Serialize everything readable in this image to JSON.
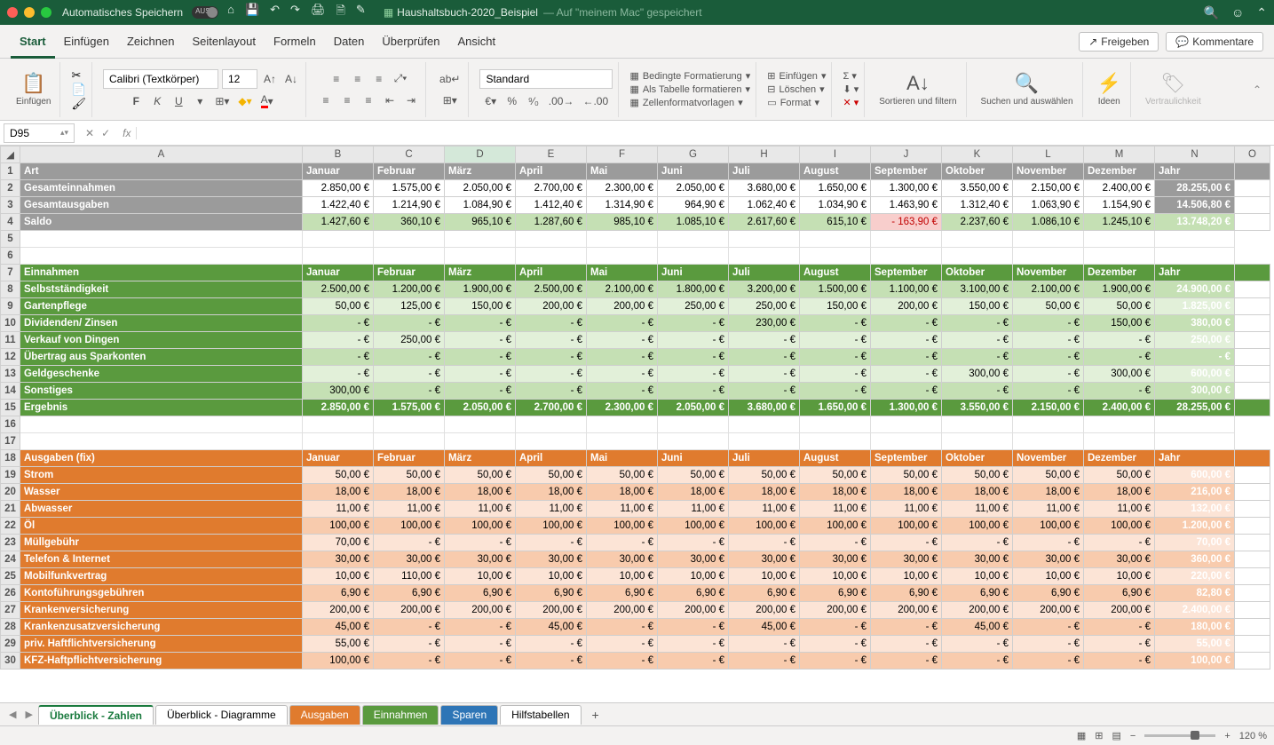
{
  "title_bar": {
    "autosave": "Automatisches Speichern",
    "autosave_state": "AUS",
    "file_name": "Haushaltsbuch-2020_Beispiel",
    "save_location": "— Auf \"meinem Mac\" gespeichert"
  },
  "menu": [
    "Start",
    "Einfügen",
    "Zeichnen",
    "Seitenlayout",
    "Formeln",
    "Daten",
    "Überprüfen",
    "Ansicht"
  ],
  "menu_right": {
    "share": "Freigeben",
    "comments": "Kommentare"
  },
  "ribbon": {
    "paste": "Einfügen",
    "font": "Calibri (Textkörper)",
    "size": "12",
    "number_format": "Standard",
    "cond_fmt": "Bedingte Formatierung",
    "as_table": "Als Tabelle formatieren",
    "cell_styles": "Zellenformatvorlagen",
    "insert": "Einfügen",
    "delete": "Löschen",
    "format": "Format",
    "sort": "Sortieren und filtern",
    "find": "Suchen und auswählen",
    "ideas": "Ideen",
    "sens": "Vertraulichkeit"
  },
  "namebox": "D95",
  "columns": [
    "A",
    "B",
    "C",
    "D",
    "E",
    "F",
    "G",
    "H",
    "I",
    "J",
    "K",
    "L",
    "M",
    "N"
  ],
  "months": [
    "Januar",
    "Februar",
    "März",
    "April",
    "Mai",
    "Juni",
    "Juli",
    "August",
    "September",
    "Oktober",
    "November",
    "Dezember",
    "Jahr"
  ],
  "summary": [
    {
      "r": 1,
      "label": "Art",
      "hdr": true
    },
    {
      "r": 2,
      "label": "Gesamteinnahmen",
      "vals": [
        "2.850,00 €",
        "1.575,00 €",
        "2.050,00 €",
        "2.700,00 €",
        "2.300,00 €",
        "2.050,00 €",
        "3.680,00 €",
        "1.650,00 €",
        "1.300,00 €",
        "3.550,00 €",
        "2.150,00 €",
        "2.400,00 €",
        "28.255,00 €"
      ]
    },
    {
      "r": 3,
      "label": "Gesamtausgaben",
      "vals": [
        "1.422,40 €",
        "1.214,90 €",
        "1.084,90 €",
        "1.412,40 €",
        "1.314,90 €",
        "964,90 €",
        "1.062,40 €",
        "1.034,90 €",
        "1.463,90 €",
        "1.312,40 €",
        "1.063,90 €",
        "1.154,90 €",
        "14.506,80 €"
      ]
    },
    {
      "r": 4,
      "label": "Saldo",
      "saldo": true,
      "vals": [
        "1.427,60 €",
        "360,10 €",
        "965,10 €",
        "1.287,60 €",
        "985,10 €",
        "1.085,10 €",
        "2.617,60 €",
        "615,10 €",
        "-    163,90 €",
        "2.237,60 €",
        "1.086,10 €",
        "1.245,10 €",
        "13.748,20 €"
      ]
    }
  ],
  "einnahmen_hdr": "Einnahmen",
  "einnahmen": [
    {
      "r": 8,
      "label": "Selbstständigkeit",
      "shade": "mid",
      "vals": [
        "2.500,00 €",
        "1.200,00 €",
        "1.900,00 €",
        "2.500,00 €",
        "2.100,00 €",
        "1.800,00 €",
        "3.200,00 €",
        "1.500,00 €",
        "1.100,00 €",
        "3.100,00 €",
        "2.100,00 €",
        "1.900,00 €",
        "24.900,00 €"
      ]
    },
    {
      "r": 9,
      "label": "Gartenpflege",
      "shade": "light",
      "vals": [
        "50,00 €",
        "125,00 €",
        "150,00 €",
        "200,00 €",
        "200,00 €",
        "250,00 €",
        "250,00 €",
        "150,00 €",
        "200,00 €",
        "150,00 €",
        "50,00 €",
        "50,00 €",
        "1.825,00 €"
      ]
    },
    {
      "r": 10,
      "label": "Dividenden/ Zinsen",
      "shade": "mid",
      "vals": [
        "-   €",
        "-   €",
        "-   €",
        "-   €",
        "-   €",
        "-   €",
        "230,00 €",
        "-   €",
        "-   €",
        "-   €",
        "-   €",
        "150,00 €",
        "380,00 €"
      ]
    },
    {
      "r": 11,
      "label": "Verkauf von Dingen",
      "shade": "light",
      "vals": [
        "-   €",
        "250,00 €",
        "-   €",
        "-   €",
        "-   €",
        "-   €",
        "-   €",
        "-   €",
        "-   €",
        "-   €",
        "-   €",
        "-   €",
        "250,00 €"
      ]
    },
    {
      "r": 12,
      "label": "Übertrag aus Sparkonten",
      "shade": "mid",
      "vals": [
        "-   €",
        "-   €",
        "-   €",
        "-   €",
        "-   €",
        "-   €",
        "-   €",
        "-   €",
        "-   €",
        "-   €",
        "-   €",
        "-   €",
        "-   €"
      ]
    },
    {
      "r": 13,
      "label": "Geldgeschenke",
      "shade": "light",
      "vals": [
        "-   €",
        "-   €",
        "-   €",
        "-   €",
        "-   €",
        "-   €",
        "-   €",
        "-   €",
        "-   €",
        "300,00 €",
        "-   €",
        "300,00 €",
        "600,00 €"
      ]
    },
    {
      "r": 14,
      "label": "Sonstiges",
      "shade": "mid",
      "vals": [
        "300,00 €",
        "-   €",
        "-   €",
        "-   €",
        "-   €",
        "-   €",
        "-   €",
        "-   €",
        "-   €",
        "-   €",
        "-   €",
        "-   €",
        "300,00 €"
      ]
    },
    {
      "r": 15,
      "label": "Ergebnis",
      "res": true,
      "vals": [
        "2.850,00 €",
        "1.575,00 €",
        "2.050,00 €",
        "2.700,00 €",
        "2.300,00 €",
        "2.050,00 €",
        "3.680,00 €",
        "1.650,00 €",
        "1.300,00 €",
        "3.550,00 €",
        "2.150,00 €",
        "2.400,00 €",
        "28.255,00 €"
      ]
    }
  ],
  "ausgaben_hdr": "Ausgaben (fix)",
  "ausgaben": [
    {
      "r": 19,
      "label": "Strom",
      "shade": "light",
      "vals": [
        "50,00 €",
        "50,00 €",
        "50,00 €",
        "50,00 €",
        "50,00 €",
        "50,00 €",
        "50,00 €",
        "50,00 €",
        "50,00 €",
        "50,00 €",
        "50,00 €",
        "50,00 €",
        "600,00 €"
      ]
    },
    {
      "r": 20,
      "label": "Wasser",
      "shade": "mid",
      "vals": [
        "18,00 €",
        "18,00 €",
        "18,00 €",
        "18,00 €",
        "18,00 €",
        "18,00 €",
        "18,00 €",
        "18,00 €",
        "18,00 €",
        "18,00 €",
        "18,00 €",
        "18,00 €",
        "216,00 €"
      ]
    },
    {
      "r": 21,
      "label": "Abwasser",
      "shade": "light",
      "vals": [
        "11,00 €",
        "11,00 €",
        "11,00 €",
        "11,00 €",
        "11,00 €",
        "11,00 €",
        "11,00 €",
        "11,00 €",
        "11,00 €",
        "11,00 €",
        "11,00 €",
        "11,00 €",
        "132,00 €"
      ]
    },
    {
      "r": 22,
      "label": "Öl",
      "shade": "mid",
      "vals": [
        "100,00 €",
        "100,00 €",
        "100,00 €",
        "100,00 €",
        "100,00 €",
        "100,00 €",
        "100,00 €",
        "100,00 €",
        "100,00 €",
        "100,00 €",
        "100,00 €",
        "100,00 €",
        "1.200,00 €"
      ]
    },
    {
      "r": 23,
      "label": "Müllgebühr",
      "shade": "light",
      "vals": [
        "70,00 €",
        "-   €",
        "-   €",
        "-   €",
        "-   €",
        "-   €",
        "-   €",
        "-   €",
        "-   €",
        "-   €",
        "-   €",
        "-   €",
        "70,00 €"
      ]
    },
    {
      "r": 24,
      "label": "Telefon & Internet",
      "shade": "mid",
      "vals": [
        "30,00 €",
        "30,00 €",
        "30,00 €",
        "30,00 €",
        "30,00 €",
        "30,00 €",
        "30,00 €",
        "30,00 €",
        "30,00 €",
        "30,00 €",
        "30,00 €",
        "30,00 €",
        "360,00 €"
      ]
    },
    {
      "r": 25,
      "label": "Mobilfunkvertrag",
      "shade": "light",
      "vals": [
        "10,00 €",
        "110,00 €",
        "10,00 €",
        "10,00 €",
        "10,00 €",
        "10,00 €",
        "10,00 €",
        "10,00 €",
        "10,00 €",
        "10,00 €",
        "10,00 €",
        "10,00 €",
        "220,00 €"
      ]
    },
    {
      "r": 26,
      "label": "Kontoführungsgebühren",
      "shade": "mid",
      "vals": [
        "6,90 €",
        "6,90 €",
        "6,90 €",
        "6,90 €",
        "6,90 €",
        "6,90 €",
        "6,90 €",
        "6,90 €",
        "6,90 €",
        "6,90 €",
        "6,90 €",
        "6,90 €",
        "82,80 €"
      ]
    },
    {
      "r": 27,
      "label": "Krankenversicherung",
      "shade": "light",
      "vals": [
        "200,00 €",
        "200,00 €",
        "200,00 €",
        "200,00 €",
        "200,00 €",
        "200,00 €",
        "200,00 €",
        "200,00 €",
        "200,00 €",
        "200,00 €",
        "200,00 €",
        "200,00 €",
        "2.400,00 €"
      ]
    },
    {
      "r": 28,
      "label": "Krankenzusatzversicherung",
      "shade": "mid",
      "vals": [
        "45,00 €",
        "-   €",
        "-   €",
        "45,00 €",
        "-   €",
        "-   €",
        "45,00 €",
        "-   €",
        "-   €",
        "45,00 €",
        "-   €",
        "-   €",
        "180,00 €"
      ]
    },
    {
      "r": 29,
      "label": "priv. Haftflichtversicherung",
      "shade": "light",
      "vals": [
        "55,00 €",
        "-   €",
        "-   €",
        "-   €",
        "-   €",
        "-   €",
        "-   €",
        "-   €",
        "-   €",
        "-   €",
        "-   €",
        "-   €",
        "55,00 €"
      ]
    },
    {
      "r": 30,
      "label": "KFZ-Haftpflichtversicherung",
      "shade": "mid",
      "vals": [
        "100,00 €",
        "-   €",
        "-   €",
        "-   €",
        "-   €",
        "-   €",
        "-   €",
        "-   €",
        "-   €",
        "-   €",
        "-   €",
        "-   €",
        "100,00 €"
      ]
    }
  ],
  "sheets": [
    {
      "label": "Überblick - Zahlen",
      "color": "#fff",
      "active": true,
      "accent": "#1a7a3e"
    },
    {
      "label": "Überblick - Diagramme",
      "color": "#fff"
    },
    {
      "label": "Ausgaben",
      "color": "#e07b2e",
      "text": "#fff"
    },
    {
      "label": "Einnahmen",
      "color": "#5a9a3e",
      "text": "#fff"
    },
    {
      "label": "Sparen",
      "color": "#2e75b6",
      "text": "#fff"
    },
    {
      "label": "Hilfstabellen",
      "color": "#fff"
    }
  ],
  "zoom": "120 %"
}
